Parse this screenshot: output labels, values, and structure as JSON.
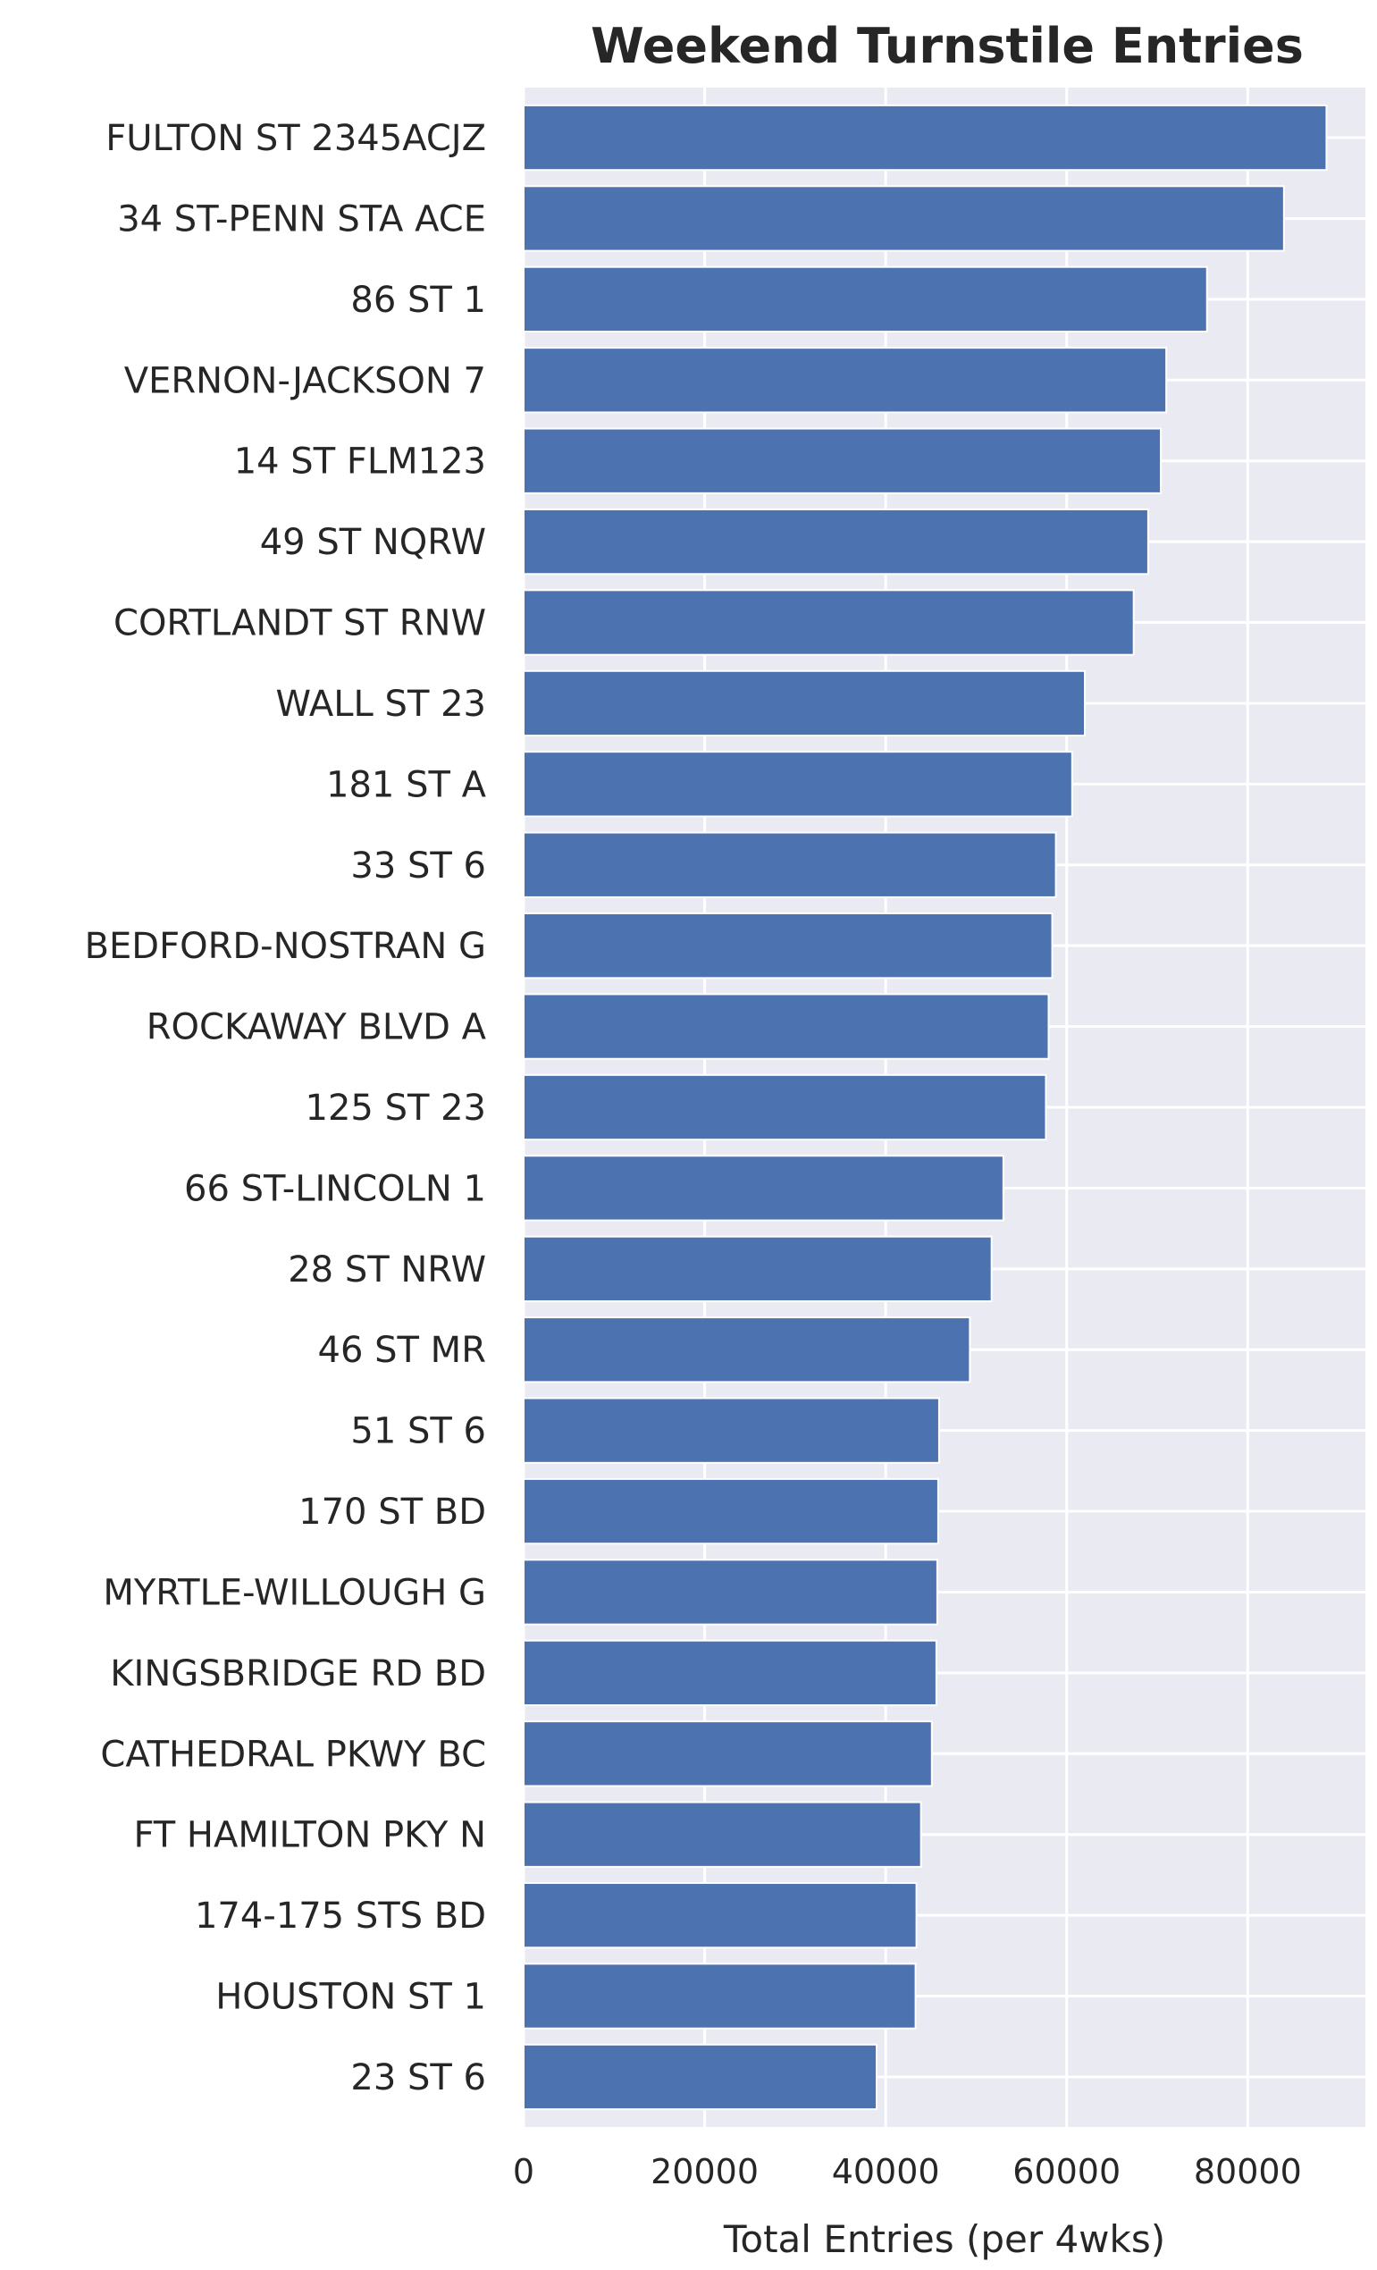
{
  "chart_data": {
    "type": "bar",
    "orientation": "horizontal",
    "title": "Weekend Turnstile Entries",
    "xlabel": "Total Entries (per 4wks)",
    "ylabel": "",
    "xlim": [
      0,
      93000
    ],
    "xticks": [
      0,
      20000,
      40000,
      60000,
      80000
    ],
    "grid": true,
    "categories": [
      "FULTON ST 2345ACJZ",
      "34 ST-PENN STA ACE",
      "86 ST 1",
      "VERNON-JACKSON 7",
      "14 ST FLM123",
      "49 ST NQRW",
      "CORTLANDT ST RNW",
      "WALL ST 23",
      "181 ST A",
      "33 ST 6",
      "BEDFORD-NOSTRAN G",
      "ROCKAWAY BLVD A",
      "125 ST 23",
      "66 ST-LINCOLN 1",
      "28 ST NRW",
      "46 ST MR",
      "51 ST 6",
      "170 ST BD",
      "MYRTLE-WILLOUGH G",
      "KINGSBRIDGE RD BD",
      "CATHEDRAL PKWY BC",
      "FT HAMILTON PKY N",
      "174-175 STS BD",
      "HOUSTON ST 1",
      "23 ST 6"
    ],
    "values": [
      88700,
      84000,
      75500,
      71000,
      70400,
      69000,
      67400,
      62000,
      60600,
      58800,
      58400,
      58000,
      57700,
      53000,
      51700,
      49300,
      45900,
      45800,
      45700,
      45600,
      45100,
      43900,
      43400,
      43300,
      39000
    ],
    "bar_color": "#4c72b0",
    "background_color": "#eaeaf2",
    "grid_color": "#ffffff"
  }
}
